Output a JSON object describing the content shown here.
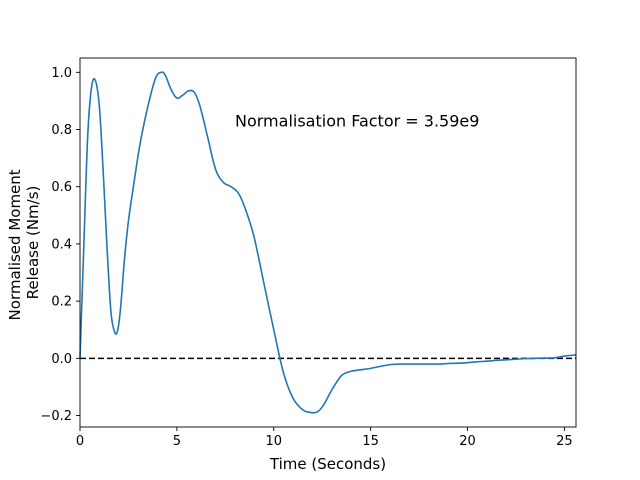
{
  "chart_data": {
    "type": "line",
    "title": "",
    "xlabel": "Time (Seconds)",
    "ylabel_lines": [
      "Normalised Moment",
      "Release (Nm/s)"
    ],
    "xlim": [
      0,
      25.6
    ],
    "ylim": [
      -0.24,
      1.05
    ],
    "xticks": [
      0,
      5,
      10,
      15,
      20,
      25
    ],
    "xtick_labels": [
      "0",
      "5",
      "10",
      "15",
      "20",
      "25"
    ],
    "yticks": [
      -0.2,
      0.0,
      0.2,
      0.4,
      0.6,
      0.8,
      1.0
    ],
    "ytick_labels": [
      "−0.2",
      "0.0",
      "0.2",
      "0.4",
      "0.6",
      "0.8",
      "1.0"
    ],
    "grid": false,
    "annotation": {
      "text": "Normalisation Factor = 3.59e9",
      "x": 8.0,
      "y": 0.81
    },
    "reference_line": {
      "y": 0.0,
      "style": "dashed",
      "color": "#000000"
    },
    "series": [
      {
        "color": "#1f77b4",
        "x": [
          0,
          0.2,
          0.4,
          0.6,
          0.8,
          1.0,
          1.2,
          1.4,
          1.6,
          1.8,
          1.95,
          2.1,
          2.3,
          2.5,
          2.8,
          3.1,
          3.5,
          3.9,
          4.2,
          4.4,
          4.7,
          5.0,
          5.3,
          5.6,
          5.9,
          6.2,
          6.6,
          7.0,
          7.4,
          7.8,
          8.2,
          8.6,
          9.0,
          9.5,
          10.0,
          10.5,
          11.0,
          11.5,
          12.0,
          12.3,
          12.6,
          13.0,
          13.5,
          14.0,
          14.5,
          15.0,
          15.5,
          16.0,
          16.5,
          17.0,
          17.5,
          18.0,
          18.5,
          19.0,
          19.5,
          20.0,
          20.5,
          21.0,
          21.5,
          22.0,
          22.5,
          23.0,
          23.5,
          24.0,
          24.5,
          25.0,
          25.6
        ],
        "y": [
          0.0,
          0.4,
          0.78,
          0.95,
          0.97,
          0.88,
          0.65,
          0.38,
          0.16,
          0.09,
          0.1,
          0.18,
          0.35,
          0.48,
          0.62,
          0.75,
          0.88,
          0.98,
          1.0,
          0.99,
          0.94,
          0.91,
          0.92,
          0.935,
          0.93,
          0.88,
          0.77,
          0.66,
          0.615,
          0.6,
          0.575,
          0.51,
          0.42,
          0.26,
          0.1,
          -0.05,
          -0.14,
          -0.18,
          -0.19,
          -0.185,
          -0.16,
          -0.11,
          -0.06,
          -0.045,
          -0.04,
          -0.035,
          -0.028,
          -0.022,
          -0.02,
          -0.02,
          -0.02,
          -0.02,
          -0.02,
          -0.018,
          -0.017,
          -0.015,
          -0.012,
          -0.01,
          -0.007,
          -0.005,
          -0.003,
          -0.001,
          0.0,
          0.001,
          0.002,
          0.008,
          0.012
        ]
      }
    ]
  }
}
